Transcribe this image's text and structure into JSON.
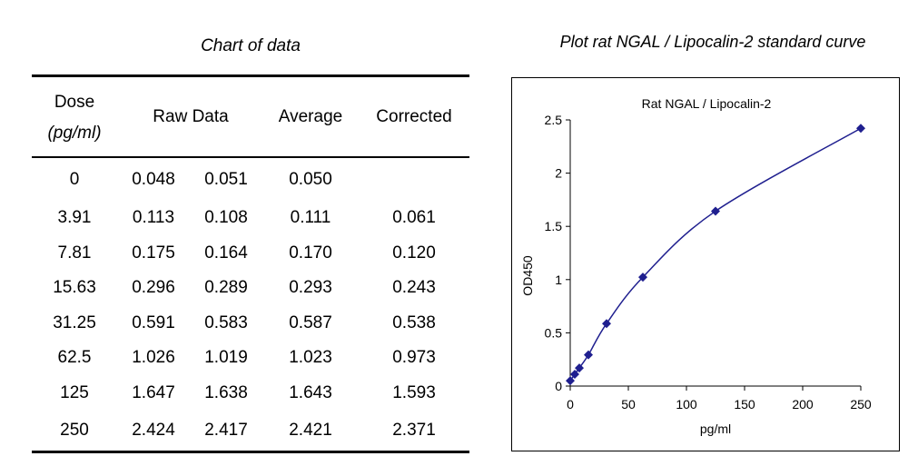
{
  "table": {
    "title": "Chart of data",
    "headers": {
      "dose_line1": "Dose",
      "dose_line2": "(pg/ml)",
      "raw": "Raw Data",
      "average": "Average",
      "corrected": "Corrected"
    },
    "rows": [
      {
        "dose": "0",
        "raw1": "0.048",
        "raw2": "0.051",
        "average": "0.050",
        "corrected": ""
      },
      {
        "dose": "3.91",
        "raw1": "0.113",
        "raw2": "0.108",
        "average": "0.111",
        "corrected": "0.061"
      },
      {
        "dose": "7.81",
        "raw1": "0.175",
        "raw2": "0.164",
        "average": "0.170",
        "corrected": "0.120"
      },
      {
        "dose": "15.63",
        "raw1": "0.296",
        "raw2": "0.289",
        "average": "0.293",
        "corrected": "0.243"
      },
      {
        "dose": "31.25",
        "raw1": "0.591",
        "raw2": "0.583",
        "average": "0.587",
        "corrected": "0.538"
      },
      {
        "dose": "62.5",
        "raw1": "1.026",
        "raw2": "1.019",
        "average": "1.023",
        "corrected": "0.973"
      },
      {
        "dose": "125",
        "raw1": "1.647",
        "raw2": "1.638",
        "average": "1.643",
        "corrected": "1.593"
      },
      {
        "dose": "250",
        "raw1": "2.424",
        "raw2": "2.417",
        "average": "2.421",
        "corrected": "2.371"
      }
    ]
  },
  "plot_title": "Plot rat NGAL / Lipocalin-2 standard curve",
  "chart_data": {
    "type": "scatter",
    "title": "Rat  NGAL / Lipocalin-2",
    "xlabel": "pg/ml",
    "ylabel": "OD450",
    "xlim": [
      0,
      250
    ],
    "ylim": [
      0,
      2.5
    ],
    "x_ticks": [
      "0",
      "50",
      "100",
      "150",
      "200",
      "250"
    ],
    "y_ticks": [
      "0",
      "0.5",
      "1",
      "1.5",
      "2",
      "2.5"
    ],
    "grid": false,
    "legend": "none",
    "marker": "diamond",
    "series_color": "#1f1f8f",
    "series": [
      {
        "x": [
          0,
          3.91,
          7.81,
          15.63,
          31.25,
          62.5,
          125,
          250
        ],
        "y": [
          0.05,
          0.111,
          0.17,
          0.293,
          0.587,
          1.023,
          1.643,
          2.421
        ]
      }
    ]
  }
}
